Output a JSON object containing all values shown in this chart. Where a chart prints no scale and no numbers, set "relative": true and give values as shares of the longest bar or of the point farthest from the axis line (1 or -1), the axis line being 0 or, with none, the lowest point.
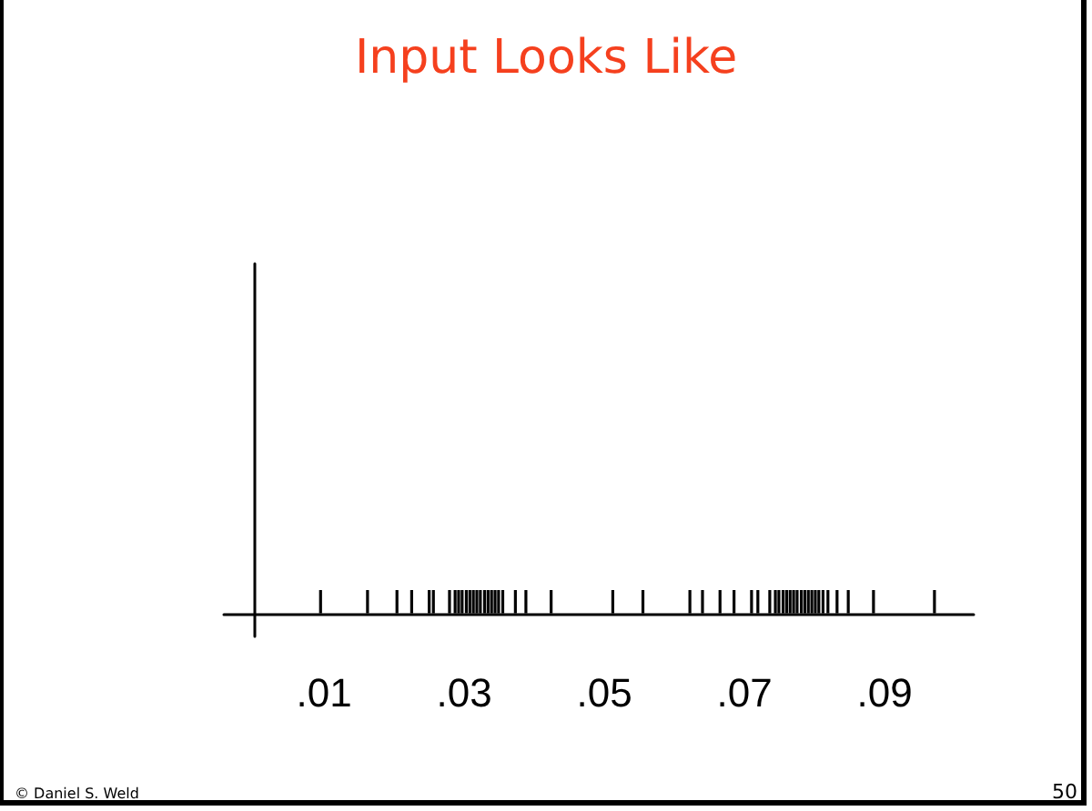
{
  "chart_data": {
    "type": "bar",
    "title": "Input Looks Like",
    "x": [
      0.0095,
      0.0162,
      0.0204,
      0.0225,
      0.025,
      0.0256,
      0.0279,
      0.0287,
      0.0292,
      0.0297,
      0.0303,
      0.0308,
      0.0313,
      0.0318,
      0.0323,
      0.0329,
      0.0334,
      0.0339,
      0.0344,
      0.0349,
      0.0355,
      0.0373,
      0.0388,
      0.0424,
      0.0512,
      0.0555,
      0.0622,
      0.064,
      0.0665,
      0.0685,
      0.071,
      0.0719,
      0.0736,
      0.0744,
      0.0749,
      0.0755,
      0.076,
      0.0765,
      0.077,
      0.0775,
      0.0781,
      0.0786,
      0.0791,
      0.0796,
      0.0801,
      0.0806,
      0.0812,
      0.0819,
      0.0832,
      0.0848,
      0.0884,
      0.0971
    ],
    "values": [
      1,
      1,
      1,
      1,
      1,
      1,
      1,
      1,
      1,
      1,
      1,
      1,
      1,
      1,
      1,
      1,
      1,
      1,
      1,
      1,
      1,
      1,
      1,
      1,
      1,
      1,
      1,
      1,
      1,
      1,
      1,
      1,
      1,
      1,
      1,
      1,
      1,
      1,
      1,
      1,
      1,
      1,
      1,
      1,
      1,
      1,
      1,
      1,
      1,
      1,
      1,
      1
    ],
    "color": "#000000",
    "relative": true,
    "xlim": [
      -0.0043,
      0.1027
    ],
    "xticks": [
      {
        "value": 0.01,
        "label": ".01"
      },
      {
        "value": 0.03,
        "label": ".03"
      },
      {
        "value": 0.05,
        "label": ".05"
      },
      {
        "value": 0.07,
        "label": ".07"
      },
      {
        "value": 0.09,
        "label": ".09"
      }
    ],
    "tick_labels": "x",
    "grid": false,
    "annotations": [
      "© Daniel S. Weld",
      "50"
    ]
  }
}
